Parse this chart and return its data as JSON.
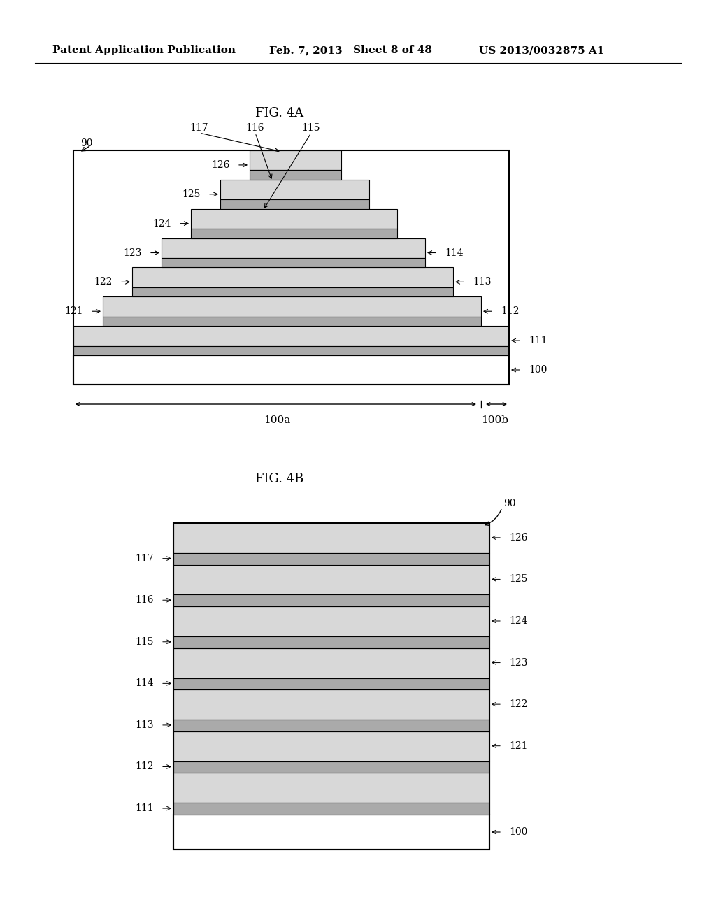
{
  "bg_color": "#ffffff",
  "header_text": "Patent Application Publication",
  "header_date": "Feb. 7, 2013",
  "header_sheet": "Sheet 8 of 48",
  "header_patent": "US 2013/0032875 A1",
  "fig4a_title": "FIG. 4A",
  "fig4b_title": "FIG. 4B",
  "dark_fill": "#aaaaaa",
  "light_fill": "#d8d8d8",
  "border_color": "#000000",
  "white": "#ffffff"
}
